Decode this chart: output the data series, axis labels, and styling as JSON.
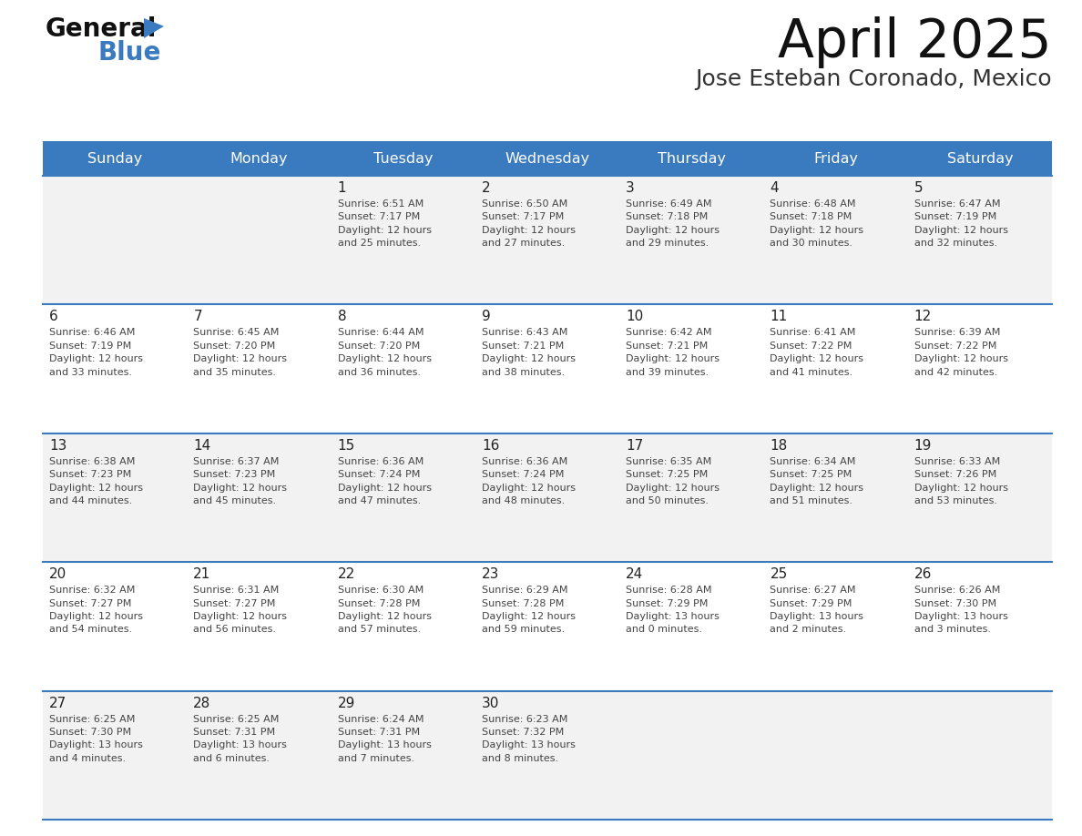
{
  "title": "April 2025",
  "subtitle": "Jose Esteban Coronado, Mexico",
  "header_bg": "#3a7abf",
  "header_text": "#ffffff",
  "day_names": [
    "Sunday",
    "Monday",
    "Tuesday",
    "Wednesday",
    "Thursday",
    "Friday",
    "Saturday"
  ],
  "row_bg_odd": "#f2f2f2",
  "row_bg_even": "#ffffff",
  "cell_border": "#3a7abf",
  "number_color": "#222222",
  "text_color": "#444444",
  "logo_black": "#111111",
  "logo_blue": "#3a7abf",
  "calendar": [
    [
      {
        "day": null,
        "info": null
      },
      {
        "day": null,
        "info": null
      },
      {
        "day": 1,
        "info": "Sunrise: 6:51 AM\nSunset: 7:17 PM\nDaylight: 12 hours\nand 25 minutes."
      },
      {
        "day": 2,
        "info": "Sunrise: 6:50 AM\nSunset: 7:17 PM\nDaylight: 12 hours\nand 27 minutes."
      },
      {
        "day": 3,
        "info": "Sunrise: 6:49 AM\nSunset: 7:18 PM\nDaylight: 12 hours\nand 29 minutes."
      },
      {
        "day": 4,
        "info": "Sunrise: 6:48 AM\nSunset: 7:18 PM\nDaylight: 12 hours\nand 30 minutes."
      },
      {
        "day": 5,
        "info": "Sunrise: 6:47 AM\nSunset: 7:19 PM\nDaylight: 12 hours\nand 32 minutes."
      }
    ],
    [
      {
        "day": 6,
        "info": "Sunrise: 6:46 AM\nSunset: 7:19 PM\nDaylight: 12 hours\nand 33 minutes."
      },
      {
        "day": 7,
        "info": "Sunrise: 6:45 AM\nSunset: 7:20 PM\nDaylight: 12 hours\nand 35 minutes."
      },
      {
        "day": 8,
        "info": "Sunrise: 6:44 AM\nSunset: 7:20 PM\nDaylight: 12 hours\nand 36 minutes."
      },
      {
        "day": 9,
        "info": "Sunrise: 6:43 AM\nSunset: 7:21 PM\nDaylight: 12 hours\nand 38 minutes."
      },
      {
        "day": 10,
        "info": "Sunrise: 6:42 AM\nSunset: 7:21 PM\nDaylight: 12 hours\nand 39 minutes."
      },
      {
        "day": 11,
        "info": "Sunrise: 6:41 AM\nSunset: 7:22 PM\nDaylight: 12 hours\nand 41 minutes."
      },
      {
        "day": 12,
        "info": "Sunrise: 6:39 AM\nSunset: 7:22 PM\nDaylight: 12 hours\nand 42 minutes."
      }
    ],
    [
      {
        "day": 13,
        "info": "Sunrise: 6:38 AM\nSunset: 7:23 PM\nDaylight: 12 hours\nand 44 minutes."
      },
      {
        "day": 14,
        "info": "Sunrise: 6:37 AM\nSunset: 7:23 PM\nDaylight: 12 hours\nand 45 minutes."
      },
      {
        "day": 15,
        "info": "Sunrise: 6:36 AM\nSunset: 7:24 PM\nDaylight: 12 hours\nand 47 minutes."
      },
      {
        "day": 16,
        "info": "Sunrise: 6:36 AM\nSunset: 7:24 PM\nDaylight: 12 hours\nand 48 minutes."
      },
      {
        "day": 17,
        "info": "Sunrise: 6:35 AM\nSunset: 7:25 PM\nDaylight: 12 hours\nand 50 minutes."
      },
      {
        "day": 18,
        "info": "Sunrise: 6:34 AM\nSunset: 7:25 PM\nDaylight: 12 hours\nand 51 minutes."
      },
      {
        "day": 19,
        "info": "Sunrise: 6:33 AM\nSunset: 7:26 PM\nDaylight: 12 hours\nand 53 minutes."
      }
    ],
    [
      {
        "day": 20,
        "info": "Sunrise: 6:32 AM\nSunset: 7:27 PM\nDaylight: 12 hours\nand 54 minutes."
      },
      {
        "day": 21,
        "info": "Sunrise: 6:31 AM\nSunset: 7:27 PM\nDaylight: 12 hours\nand 56 minutes."
      },
      {
        "day": 22,
        "info": "Sunrise: 6:30 AM\nSunset: 7:28 PM\nDaylight: 12 hours\nand 57 minutes."
      },
      {
        "day": 23,
        "info": "Sunrise: 6:29 AM\nSunset: 7:28 PM\nDaylight: 12 hours\nand 59 minutes."
      },
      {
        "day": 24,
        "info": "Sunrise: 6:28 AM\nSunset: 7:29 PM\nDaylight: 13 hours\nand 0 minutes."
      },
      {
        "day": 25,
        "info": "Sunrise: 6:27 AM\nSunset: 7:29 PM\nDaylight: 13 hours\nand 2 minutes."
      },
      {
        "day": 26,
        "info": "Sunrise: 6:26 AM\nSunset: 7:30 PM\nDaylight: 13 hours\nand 3 minutes."
      }
    ],
    [
      {
        "day": 27,
        "info": "Sunrise: 6:25 AM\nSunset: 7:30 PM\nDaylight: 13 hours\nand 4 minutes."
      },
      {
        "day": 28,
        "info": "Sunrise: 6:25 AM\nSunset: 7:31 PM\nDaylight: 13 hours\nand 6 minutes."
      },
      {
        "day": 29,
        "info": "Sunrise: 6:24 AM\nSunset: 7:31 PM\nDaylight: 13 hours\nand 7 minutes."
      },
      {
        "day": 30,
        "info": "Sunrise: 6:23 AM\nSunset: 7:32 PM\nDaylight: 13 hours\nand 8 minutes."
      },
      {
        "day": null,
        "info": null
      },
      {
        "day": null,
        "info": null
      },
      {
        "day": null,
        "info": null
      }
    ]
  ]
}
